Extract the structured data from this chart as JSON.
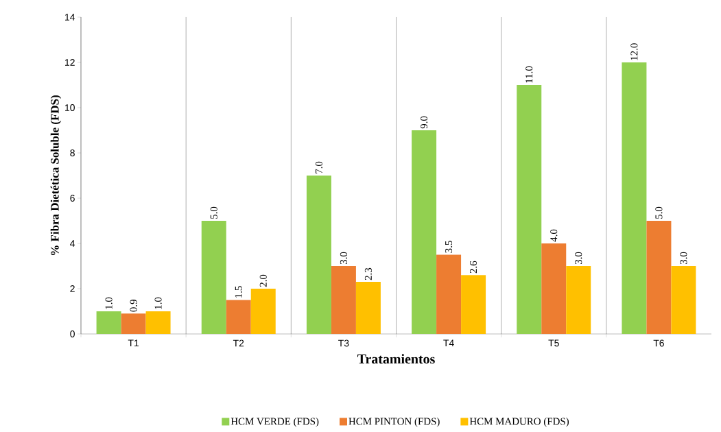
{
  "chart_data": {
    "type": "bar",
    "xlabel": "Tratamientos",
    "ylabel": "% Fibra Dietética Soluble (FDS)",
    "categories": [
      "T1",
      "T2",
      "T3",
      "T4",
      "T5",
      "T6"
    ],
    "series": [
      {
        "name": "HCM VERDE (FDS)",
        "color": "#92d050",
        "values": [
          1.0,
          5.0,
          7.0,
          9.0,
          11.0,
          12.0
        ],
        "value_labels": [
          "1.0",
          "5.0",
          "7.0",
          "9.0",
          "11.0",
          "12.0"
        ]
      },
      {
        "name": "HCM PINTON (FDS)",
        "color": "#ed7d31",
        "values": [
          0.9,
          1.5,
          3.0,
          3.5,
          4.0,
          5.0
        ],
        "value_labels": [
          "0.9",
          "1.5",
          "3.0",
          "3.5",
          "4.0",
          "5.0"
        ]
      },
      {
        "name": "HCM MADURO (FDS)",
        "color": "#ffc000",
        "values": [
          1.0,
          2.0,
          2.3,
          2.6,
          3.0,
          3.0
        ],
        "value_labels": [
          "1.0",
          "2.0",
          "2.3",
          "2.6",
          "3.0",
          "3.0"
        ]
      }
    ],
    "ylim": [
      0,
      14
    ],
    "yticks": [
      0,
      2,
      4,
      6,
      8,
      10,
      12,
      14
    ],
    "grid": "x",
    "legend": "bottom"
  }
}
